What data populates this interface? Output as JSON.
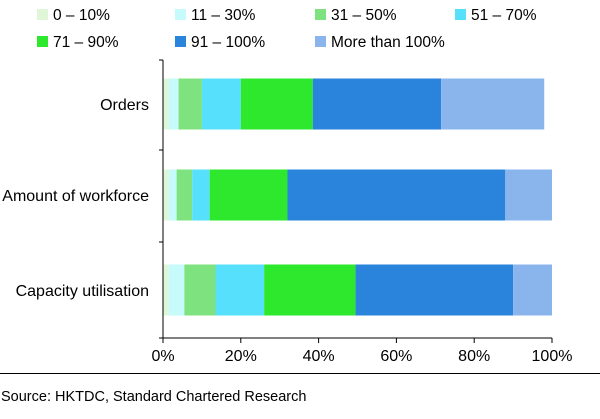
{
  "chart_data": {
    "type": "bar",
    "orientation": "horizontal",
    "stacked": true,
    "title": "",
    "xlabel": "",
    "ylabel": "",
    "xlim": [
      0,
      100
    ],
    "x_ticks": [
      "0%",
      "20%",
      "40%",
      "60%",
      "80%",
      "100%"
    ],
    "categories": [
      "Orders",
      "Amount of workforce",
      "Capacity utilisation"
    ],
    "series": [
      {
        "name": "0 – 10%",
        "color": "#dff7d8",
        "values": [
          1.5,
          1.5,
          1.5
        ]
      },
      {
        "name": "11 – 30%",
        "color": "#c6fafb",
        "values": [
          2.5,
          2.0,
          4.0
        ]
      },
      {
        "name": "31 – 50%",
        "color": "#7ee37e",
        "values": [
          6.0,
          4.0,
          8.0
        ]
      },
      {
        "name": "51 – 70%",
        "color": "#56e0fb",
        "values": [
          10.0,
          4.5,
          12.5
        ]
      },
      {
        "name": "71 – 90%",
        "color": "#2ee82e",
        "values": [
          18.5,
          20.0,
          23.5
        ]
      },
      {
        "name": "91 – 100%",
        "color": "#2a84dc",
        "values": [
          33.0,
          56.0,
          40.5
        ]
      },
      {
        "name": "More than 100%",
        "color": "#8ab4ec",
        "values": [
          26.5,
          12.0,
          10.0
        ]
      }
    ],
    "legend_position": "top",
    "grid": false
  },
  "source_text": "Source: HKTDC, Standard Chartered Research"
}
